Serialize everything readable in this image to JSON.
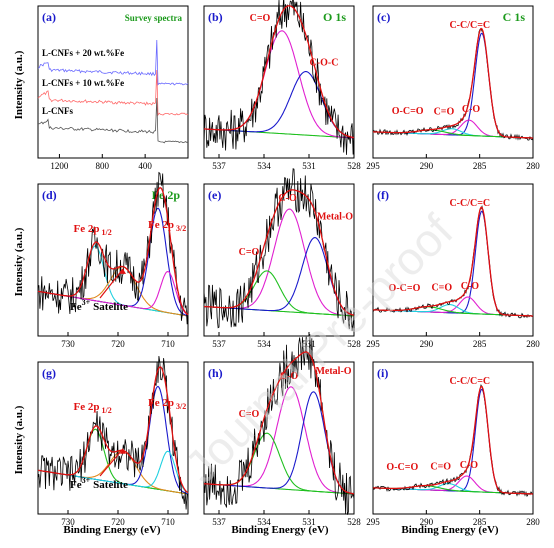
{
  "figure": {
    "x_axis_label": "Binding Energy (eV)",
    "y_axis_label": "Intensity (a.u.)",
    "watermark": "Journal Pre-proof"
  },
  "colors": {
    "raw": "#000000",
    "envelope": "#e01010",
    "background": "#20c020",
    "blue": "#1a1acc",
    "magenta": "#e020d0",
    "cyan": "#20d0e0",
    "label_blue": "#1a1acc",
    "label_red": "#e01010",
    "label_green": "#1c9a1c"
  },
  "chart_data": [
    {
      "id": "a",
      "panel_label": "(a)",
      "type": "line",
      "title": "Survey spectra",
      "xlim": [
        1400,
        0
      ],
      "xticks": [
        1200,
        800,
        400
      ],
      "series": [
        {
          "name": "L-CNFs + 20 wt.%Fe",
          "color": "#6a6aff",
          "offset": 78
        },
        {
          "name": "L-CNFs + 10 wt.%Fe",
          "color": "#ff6a6a",
          "offset": 48
        },
        {
          "name": "L-CNFs",
          "color": "#555555",
          "offset": 20
        }
      ]
    },
    {
      "id": "b",
      "panel_label": "(b)",
      "type": "line",
      "title": "O 1s",
      "xlim": [
        538,
        528
      ],
      "xticks": [
        537,
        534,
        531,
        528
      ],
      "components": [
        {
          "label": "C=O",
          "center": 532.8,
          "fwhm": 2.6,
          "height": 68,
          "color": "#e020d0"
        },
        {
          "label": "C-O-C",
          "center": 531.2,
          "fwhm": 2.4,
          "height": 42,
          "color": "#1a1acc"
        }
      ]
    },
    {
      "id": "c",
      "panel_label": "(c)",
      "type": "line",
      "title": "C 1s",
      "xlim": [
        295,
        280
      ],
      "xticks": [
        295,
        290,
        285,
        280
      ],
      "components": [
        {
          "label": "C-C/C=C",
          "center": 284.8,
          "fwhm": 1.5,
          "height": 100,
          "color": "#1a1acc"
        },
        {
          "label": "C-O",
          "center": 286.0,
          "fwhm": 1.8,
          "height": 15,
          "color": "#e020d0"
        },
        {
          "label": "C=O",
          "center": 287.6,
          "fwhm": 2.0,
          "height": 6,
          "color": "#20d0e0"
        },
        {
          "label": "O-C=O",
          "center": 289.5,
          "fwhm": 3.0,
          "height": 4,
          "color": "#20c020"
        }
      ]
    },
    {
      "id": "d",
      "panel_label": "(d)",
      "type": "line",
      "title": "Fe 2p",
      "xlim": [
        736,
        706
      ],
      "xticks": [
        730,
        720,
        710
      ],
      "peak_labels": [
        {
          "text": "Fe 2p",
          "sub": "1/2"
        },
        {
          "text": "Fe 2p",
          "sub": "3/2"
        }
      ],
      "satellite_label": {
        "text": "Fe",
        "sup": "3+",
        "tail": "Satelite"
      },
      "components": [
        {
          "center": 724.5,
          "fwhm": 4.0,
          "height": 40,
          "color": "#20d0e0"
        },
        {
          "center": 719.0,
          "fwhm": 6.0,
          "height": 28,
          "color": "#e08a20"
        },
        {
          "center": 712.0,
          "fwhm": 4.0,
          "height": 75,
          "color": "#1a1acc"
        },
        {
          "center": 710.0,
          "fwhm": 3.5,
          "height": 30,
          "color": "#e020d0"
        }
      ]
    },
    {
      "id": "e",
      "panel_label": "(e)",
      "type": "line",
      "xlim": [
        538,
        528
      ],
      "xticks": [
        537,
        534,
        531,
        528
      ],
      "components": [
        {
          "label": "C-O",
          "center": 532.3,
          "fwhm": 2.4,
          "height": 65,
          "color": "#e020d0"
        },
        {
          "label": "C=O",
          "center": 533.8,
          "fwhm": 2.0,
          "height": 25,
          "color": "#20c020"
        },
        {
          "label": "Metal-O",
          "center": 530.6,
          "fwhm": 2.0,
          "height": 48,
          "color": "#1a1acc"
        }
      ]
    },
    {
      "id": "f",
      "panel_label": "(f)",
      "type": "line",
      "xlim": [
        295,
        280
      ],
      "xticks": [
        295,
        290,
        285,
        280
      ],
      "components": [
        {
          "label": "C-C/C=C",
          "center": 284.8,
          "fwhm": 1.4,
          "height": 100,
          "color": "#1a1acc"
        },
        {
          "label": "C-O",
          "center": 286.1,
          "fwhm": 1.8,
          "height": 16,
          "color": "#e020d0"
        },
        {
          "label": "C=O",
          "center": 287.8,
          "fwhm": 2.0,
          "height": 8,
          "color": "#20d0e0"
        },
        {
          "label": "O-C=O",
          "center": 289.8,
          "fwhm": 3.0,
          "height": 5,
          "color": "#20c020"
        }
      ]
    },
    {
      "id": "g",
      "panel_label": "(g)",
      "type": "line",
      "xlim": [
        736,
        706
      ],
      "xticks": [
        730,
        720,
        710
      ],
      "peak_labels": [
        {
          "text": "Fe 2p",
          "sub": "1/2"
        },
        {
          "text": "Fe 2p",
          "sub": "3/2"
        }
      ],
      "satellite_label": {
        "text": "Fe",
        "sup": "3+",
        "tail": "Satelite"
      },
      "components": [
        {
          "center": 724.5,
          "fwhm": 4.0,
          "height": 38,
          "color": "#20c020"
        },
        {
          "center": 719.0,
          "fwhm": 6.0,
          "height": 25,
          "color": "#e08a20"
        },
        {
          "center": 712.0,
          "fwhm": 4.0,
          "height": 78,
          "color": "#1a1acc"
        },
        {
          "center": 710.0,
          "fwhm": 3.5,
          "height": 30,
          "color": "#20d0e0"
        }
      ]
    },
    {
      "id": "h",
      "panel_label": "(h)",
      "type": "line",
      "xlim": [
        538,
        528
      ],
      "xticks": [
        537,
        534,
        531,
        528
      ],
      "components": [
        {
          "label": "C-O",
          "center": 532.2,
          "fwhm": 2.2,
          "height": 60,
          "color": "#e020d0"
        },
        {
          "label": "C=O",
          "center": 533.8,
          "fwhm": 2.0,
          "height": 32,
          "color": "#20c020"
        },
        {
          "label": "Metal-O",
          "center": 530.7,
          "fwhm": 1.8,
          "height": 58,
          "color": "#1a1acc"
        }
      ]
    },
    {
      "id": "i",
      "panel_label": "(i)",
      "type": "line",
      "xlim": [
        295,
        280
      ],
      "xticks": [
        295,
        290,
        285,
        280
      ],
      "components": [
        {
          "label": "C-C/C=C",
          "center": 284.8,
          "fwhm": 1.4,
          "height": 100,
          "color": "#1a1acc"
        },
        {
          "label": "C-O",
          "center": 286.2,
          "fwhm": 1.8,
          "height": 15,
          "color": "#e020d0"
        },
        {
          "label": "C=O",
          "center": 287.9,
          "fwhm": 2.0,
          "height": 7,
          "color": "#20d0e0"
        },
        {
          "label": "O-C=O",
          "center": 290.0,
          "fwhm": 3.0,
          "height": 4,
          "color": "#20c020"
        }
      ]
    }
  ]
}
